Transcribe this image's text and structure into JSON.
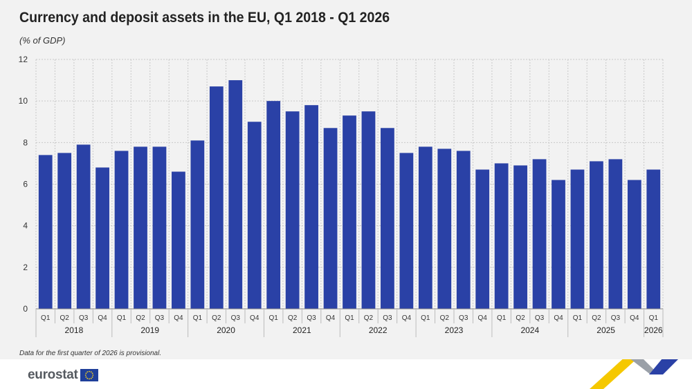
{
  "header": {
    "title": "Currency and deposit assets in the EU, Q1 2018 - Q1 2026",
    "subtitle": "(% of GDP)"
  },
  "note": "Data for the first quarter of 2026 is provisional.",
  "brand": {
    "logo_text": "eurostat"
  },
  "colors": {
    "bar": "#2a41a6",
    "grid": "#c8c8c8",
    "background": "#f2f2f2",
    "footer": "#ffffff",
    "flag": "#1f3f9a",
    "flag_star": "#ffd617"
  },
  "chart_data": {
    "type": "bar",
    "title": "Currency and deposit assets in the EU, Q1 2018 - Q1 2026",
    "subtitle": "(% of GDP)",
    "ylim": [
      0,
      12
    ],
    "yticks": [
      0,
      2,
      4,
      6,
      8,
      10,
      12
    ],
    "grid": true,
    "quarters": [
      "Q1",
      "Q2",
      "Q3",
      "Q4",
      "Q1",
      "Q2",
      "Q3",
      "Q4",
      "Q1",
      "Q2",
      "Q3",
      "Q4",
      "Q1",
      "Q2",
      "Q3",
      "Q4",
      "Q1",
      "Q2",
      "Q3",
      "Q4",
      "Q1",
      "Q2",
      "Q3",
      "Q4",
      "Q1",
      "Q2",
      "Q3",
      "Q4",
      "Q1",
      "Q2",
      "Q3",
      "Q4",
      "Q1"
    ],
    "years": [
      "2018",
      "2019",
      "2020",
      "2021",
      "2022",
      "2023",
      "2024",
      "2025",
      "2026"
    ],
    "values": [
      7.4,
      7.5,
      7.9,
      6.8,
      7.6,
      7.8,
      7.8,
      6.6,
      8.1,
      10.7,
      11.0,
      9.0,
      10.0,
      9.5,
      9.8,
      8.7,
      9.3,
      9.5,
      8.7,
      7.5,
      7.8,
      7.7,
      7.6,
      6.7,
      7.0,
      6.9,
      7.2,
      6.2,
      6.7,
      7.1,
      7.2,
      6.2,
      6.7
    ]
  }
}
